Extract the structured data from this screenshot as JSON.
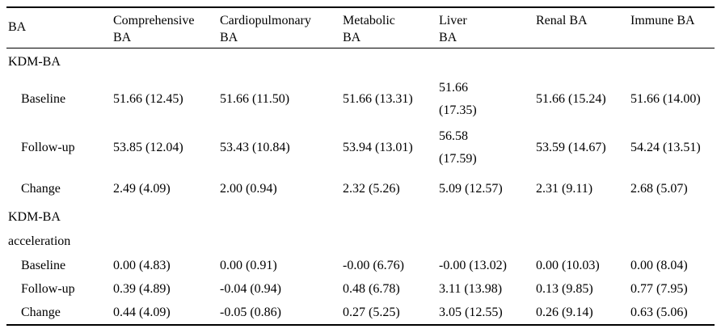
{
  "table": {
    "columns": [
      "BA",
      "Comprehensive\nBA",
      "Cardiopulmonary\nBA",
      "Metabolic\nBA",
      "Liver\nBA",
      "Renal BA",
      "Immune BA"
    ],
    "rows": [
      {
        "type": "section",
        "label": "KDM-BA",
        "values": [
          "",
          "",
          "",
          "",
          "",
          ""
        ]
      },
      {
        "type": "data",
        "label": "Baseline",
        "values": [
          "51.66 (12.45)",
          "51.66 (11.50)",
          "51.66 (13.31)",
          "51.66\n(17.35)",
          "51.66 (15.24)",
          "51.66 (14.00)"
        ]
      },
      {
        "type": "data",
        "label": "Follow-up",
        "values": [
          "53.85 (12.04)",
          "53.43 (10.84)",
          "53.94 (13.01)",
          "56.58\n(17.59)",
          "53.59 (14.67)",
          "54.24 (13.51)"
        ]
      },
      {
        "type": "data",
        "label": "Change",
        "values": [
          "2.49 (4.09)",
          "2.00 (0.94)",
          "2.32 (5.26)",
          "5.09 (12.57)",
          "2.31 (9.11)",
          "2.68 (5.07)"
        ]
      },
      {
        "type": "section",
        "label": "KDM-BA\nacceleration",
        "values": [
          "",
          "",
          "",
          "",
          "",
          ""
        ]
      },
      {
        "type": "data",
        "label": "Baseline",
        "values": [
          "0.00 (4.83)",
          "0.00 (0.91)",
          "-0.00 (6.76)",
          "-0.00 (13.02)",
          "0.00 (10.03)",
          "0.00 (8.04)"
        ]
      },
      {
        "type": "data",
        "label": "Follow-up",
        "values": [
          "0.39 (4.89)",
          "-0.04 (0.94)",
          "0.48 (6.78)",
          "3.11 (13.98)",
          "0.13 (9.85)",
          "0.77 (7.95)"
        ]
      },
      {
        "type": "data",
        "label": "Change",
        "values": [
          "0.44 (4.09)",
          "-0.05 (0.86)",
          "0.27 (5.25)",
          "3.05 (12.55)",
          "0.26 (9.14)",
          "0.63 (5.06)"
        ]
      }
    ]
  }
}
